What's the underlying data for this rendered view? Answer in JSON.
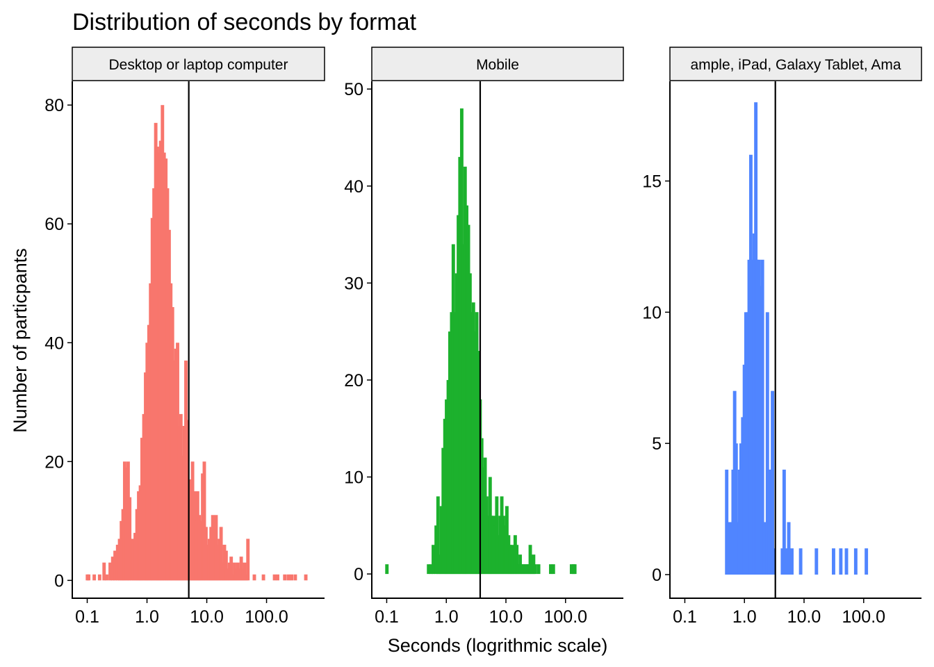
{
  "chart_data": {
    "type": "bar",
    "title": "Distribution of seconds by format",
    "xlabel": "Seconds (logrithmic scale)",
    "ylabel": "Number of particpants",
    "x_scale": "log10",
    "x_ticks": [
      0.1,
      1,
      10,
      100
    ],
    "x_tick_labels": [
      "0.1",
      "1.0",
      "10.0",
      "100.0"
    ],
    "grid": false,
    "legend": "none",
    "panels": [
      {
        "facet": "Desktop or laptop computer",
        "color": "#F8766D",
        "ylim": [
          -3,
          84
        ],
        "y_ticks": [
          0,
          20,
          40,
          60,
          80
        ],
        "vline": 5.0,
        "bins": [
          [
            0.1,
            1
          ],
          [
            0.105,
            1
          ],
          [
            0.13,
            1
          ],
          [
            0.16,
            1
          ],
          [
            0.19,
            3
          ],
          [
            0.21,
            1
          ],
          [
            0.24,
            3
          ],
          [
            0.265,
            4
          ],
          [
            0.29,
            5
          ],
          [
            0.32,
            6
          ],
          [
            0.345,
            7
          ],
          [
            0.37,
            10
          ],
          [
            0.395,
            12
          ],
          [
            0.42,
            20
          ],
          [
            0.45,
            19
          ],
          [
            0.48,
            20
          ],
          [
            0.51,
            14
          ],
          [
            0.55,
            7
          ],
          [
            0.59,
            7
          ],
          [
            0.63,
            8
          ],
          [
            0.675,
            12
          ],
          [
            0.72,
            15
          ],
          [
            0.77,
            16
          ],
          [
            0.82,
            24
          ],
          [
            0.88,
            28
          ],
          [
            0.94,
            35
          ],
          [
            1.0,
            40
          ],
          [
            1.07,
            43
          ],
          [
            1.14,
            50
          ],
          [
            1.22,
            61
          ],
          [
            1.3,
            66
          ],
          [
            1.39,
            77
          ],
          [
            1.48,
            73
          ],
          [
            1.58,
            72
          ],
          [
            1.68,
            74
          ],
          [
            1.8,
            80
          ],
          [
            1.92,
            72
          ],
          [
            2.05,
            71
          ],
          [
            2.18,
            66
          ],
          [
            2.33,
            59
          ],
          [
            2.48,
            50
          ],
          [
            2.65,
            46
          ],
          [
            2.83,
            37
          ],
          [
            3.02,
            39
          ],
          [
            3.22,
            40
          ],
          [
            3.43,
            26
          ],
          [
            3.66,
            28
          ],
          [
            3.9,
            21
          ],
          [
            4.16,
            26
          ],
          [
            4.44,
            37
          ],
          [
            4.73,
            27
          ],
          [
            5.05,
            15
          ],
          [
            5.39,
            17
          ],
          [
            5.74,
            20
          ],
          [
            6.13,
            15
          ],
          [
            6.53,
            10
          ],
          [
            6.97,
            15
          ],
          [
            7.43,
            11
          ],
          [
            7.93,
            10
          ],
          [
            8.46,
            18
          ],
          [
            9.02,
            20
          ],
          [
            9.62,
            9
          ],
          [
            10.3,
            6
          ],
          [
            11.0,
            7
          ],
          [
            11.7,
            9
          ],
          [
            12.5,
            11
          ],
          [
            13.3,
            8
          ],
          [
            14.2,
            11
          ],
          [
            15.1,
            6
          ],
          [
            16.1,
            7
          ],
          [
            17.2,
            9
          ],
          [
            18.4,
            3
          ],
          [
            19.6,
            6
          ],
          [
            20.9,
            5
          ],
          [
            22.3,
            2
          ],
          [
            23.8,
            3
          ],
          [
            25.4,
            4
          ],
          [
            27.1,
            1
          ],
          [
            28.9,
            3
          ],
          [
            30.8,
            2
          ],
          [
            32.9,
            3
          ],
          [
            35.1,
            2
          ],
          [
            37.4,
            4
          ],
          [
            39.9,
            2
          ],
          [
            42.6,
            3
          ],
          [
            45.4,
            1
          ],
          [
            48.4,
            7
          ],
          [
            62,
            1
          ],
          [
            88,
            1
          ],
          [
            135,
            1
          ],
          [
            152,
            1
          ],
          [
            200,
            1
          ],
          [
            230,
            1
          ],
          [
            260,
            1
          ],
          [
            300,
            1
          ],
          [
            450,
            1
          ]
        ]
      },
      {
        "facet": "Mobile",
        "color": "#1CB12D",
        "ylim": [
          -2.5,
          50.8
        ],
        "y_ticks": [
          0,
          10,
          20,
          30,
          40,
          50
        ],
        "vline": 3.7,
        "bins": [
          [
            0.1,
            1
          ],
          [
            0.5,
            1
          ],
          [
            0.55,
            1
          ],
          [
            0.6,
            3
          ],
          [
            0.67,
            5
          ],
          [
            0.72,
            8
          ],
          [
            0.77,
            2
          ],
          [
            0.82,
            7
          ],
          [
            0.88,
            13
          ],
          [
            0.94,
            16
          ],
          [
            1.0,
            18
          ],
          [
            1.07,
            20
          ],
          [
            1.14,
            25
          ],
          [
            1.22,
            27
          ],
          [
            1.3,
            34
          ],
          [
            1.39,
            27
          ],
          [
            1.48,
            31
          ],
          [
            1.58,
            37
          ],
          [
            1.68,
            43
          ],
          [
            1.8,
            48
          ],
          [
            1.92,
            34
          ],
          [
            2.05,
            42
          ],
          [
            2.18,
            38
          ],
          [
            2.33,
            36
          ],
          [
            2.48,
            31
          ],
          [
            2.65,
            27
          ],
          [
            2.83,
            28
          ],
          [
            3.02,
            25
          ],
          [
            3.22,
            27
          ],
          [
            3.43,
            23
          ],
          [
            3.66,
            18
          ],
          [
            3.9,
            14
          ],
          [
            4.16,
            11
          ],
          [
            4.44,
            12
          ],
          [
            4.73,
            8
          ],
          [
            5.05,
            6
          ],
          [
            5.39,
            10
          ],
          [
            5.74,
            6
          ],
          [
            6.13,
            6
          ],
          [
            6.53,
            5
          ],
          [
            6.97,
            8
          ],
          [
            7.43,
            4
          ],
          [
            7.93,
            6
          ],
          [
            8.46,
            8
          ],
          [
            9.02,
            6
          ],
          [
            9.62,
            5
          ],
          [
            10.3,
            7
          ],
          [
            11.0,
            4
          ],
          [
            11.7,
            3
          ],
          [
            12.5,
            3
          ],
          [
            13.3,
            2
          ],
          [
            14.2,
            4
          ],
          [
            15.1,
            3
          ],
          [
            16.1,
            1
          ],
          [
            17.2,
            2
          ],
          [
            18.4,
            1
          ],
          [
            19.6,
            1
          ],
          [
            20.9,
            1
          ],
          [
            22.3,
            1
          ],
          [
            23.8,
            1
          ],
          [
            25.4,
            3
          ],
          [
            27.1,
            1
          ],
          [
            28.9,
            2
          ],
          [
            30.8,
            1
          ],
          [
            35.1,
            1
          ],
          [
            56,
            1
          ],
          [
            62,
            1
          ],
          [
            125,
            1
          ],
          [
            135,
            1
          ],
          [
            142,
            1
          ]
        ]
      },
      {
        "facet": "Tablet (for example, iPad, Galaxy Tablet, Amazon Fire)",
        "strip_text": "ample, iPad, Galaxy Tablet, Ama",
        "color": "#5085FF",
        "ylim": [
          -0.9,
          18.8
        ],
        "y_ticks": [
          0,
          5,
          10,
          15
        ],
        "vline": 3.3,
        "bins": [
          [
            0.5,
            4
          ],
          [
            0.53,
            2
          ],
          [
            0.56,
            2
          ],
          [
            0.6,
            2
          ],
          [
            0.64,
            4
          ],
          [
            0.68,
            7
          ],
          [
            0.72,
            5
          ],
          [
            0.77,
            2
          ],
          [
            0.82,
            4
          ],
          [
            0.87,
            5
          ],
          [
            0.93,
            6
          ],
          [
            0.99,
            8
          ],
          [
            1.05,
            10
          ],
          [
            1.12,
            10
          ],
          [
            1.19,
            12
          ],
          [
            1.27,
            16
          ],
          [
            1.36,
            12
          ],
          [
            1.45,
            13
          ],
          [
            1.54,
            18
          ],
          [
            1.64,
            12
          ],
          [
            1.75,
            12
          ],
          [
            1.87,
            11
          ],
          [
            1.99,
            12
          ],
          [
            2.12,
            2
          ],
          [
            2.26,
            2
          ],
          [
            2.41,
            10
          ],
          [
            2.57,
            4
          ],
          [
            2.74,
            4
          ],
          [
            2.93,
            7
          ],
          [
            3.12,
            1
          ],
          [
            4.3,
            1
          ],
          [
            4.6,
            4
          ],
          [
            5.1,
            1
          ],
          [
            5.5,
            2
          ],
          [
            6.2,
            1
          ],
          [
            8.7,
            1
          ],
          [
            16,
            1
          ],
          [
            31,
            1
          ],
          [
            41,
            1
          ],
          [
            51,
            1
          ],
          [
            73,
            1
          ],
          [
            110,
            1
          ]
        ]
      }
    ]
  }
}
